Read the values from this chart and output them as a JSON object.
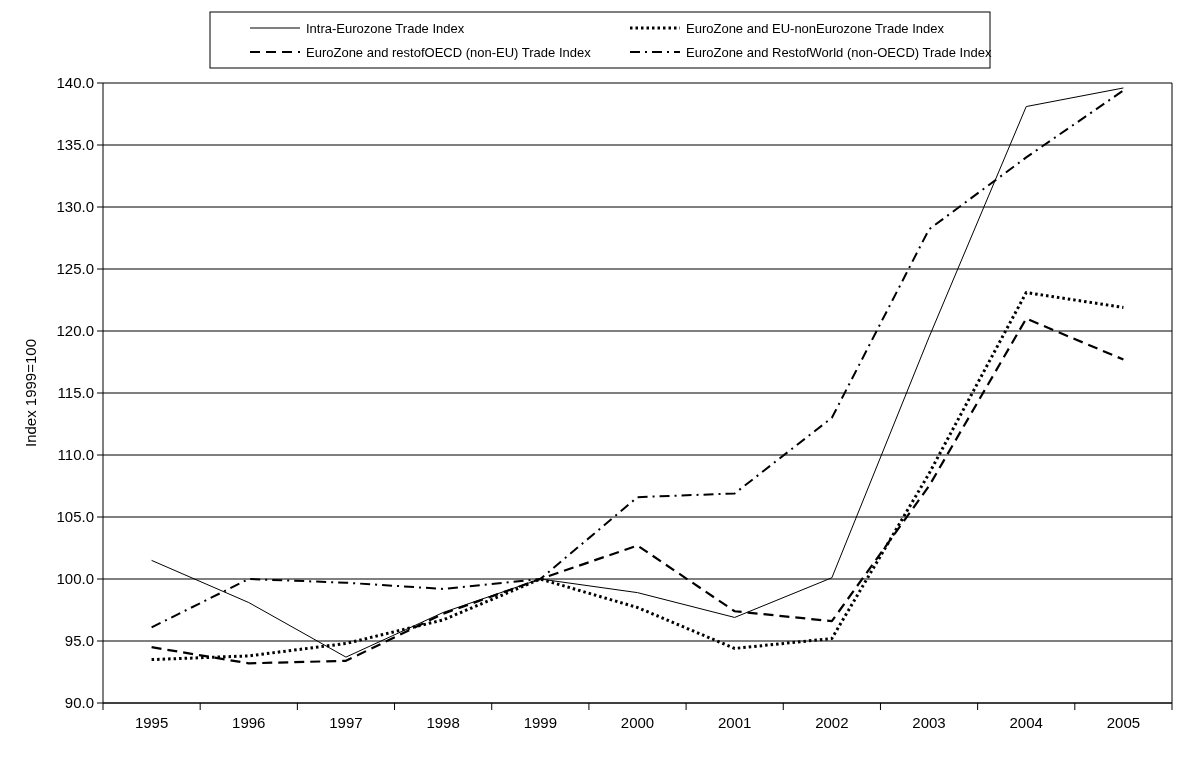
{
  "chart_data": {
    "type": "line",
    "ylabel": "Index  1999=100",
    "categories": [
      "1995",
      "1996",
      "1997",
      "1998",
      "1999",
      "2000",
      "2001",
      "2002",
      "2003",
      "2004",
      "2005"
    ],
    "series": [
      {
        "name": "Intra-Eurozone Trade Index",
        "color": "#000000",
        "line_style": "solid",
        "values": [
          101.5,
          98.1,
          93.7,
          97.3,
          100.0,
          98.9,
          96.9,
          100.1,
          119.5,
          138.1,
          139.6
        ]
      },
      {
        "name": "EuroZone and EU-nonEurozone Trade Index",
        "color": "#000000",
        "line_style": "dotted",
        "values": [
          93.5,
          93.8,
          94.8,
          96.7,
          100.0,
          97.7,
          94.4,
          95.2,
          108.5,
          123.1,
          121.9
        ]
      },
      {
        "name": "EuroZone and restofOECD (non-EU) Trade Index",
        "color": "#000000",
        "line_style": "dashed",
        "values": [
          94.5,
          93.2,
          93.4,
          97.2,
          100.0,
          102.7,
          97.4,
          96.6,
          107.5,
          121.0,
          117.7
        ]
      },
      {
        "name": "EuroZone and RestofWorld (non-OECD) Trade Index",
        "color": "#000000",
        "line_style": "dashdot",
        "values": [
          96.1,
          100.0,
          99.7,
          99.2,
          100.0,
          106.6,
          106.9,
          113.0,
          128.2,
          134.0,
          139.4
        ]
      }
    ],
    "ylim": [
      90,
      140
    ],
    "yticks": [
      {
        "value": 90,
        "label": "90.0"
      },
      {
        "value": 95,
        "label": "95.0"
      },
      {
        "value": 100,
        "label": "100.0"
      },
      {
        "value": 105,
        "label": "105.0"
      },
      {
        "value": 110,
        "label": "110.0"
      },
      {
        "value": 115,
        "label": "115.0"
      },
      {
        "value": 120,
        "label": "120.0"
      },
      {
        "value": 125,
        "label": "125.0"
      },
      {
        "value": 130,
        "label": "130.0"
      },
      {
        "value": 135,
        "label": "135.0"
      },
      {
        "value": 140,
        "label": "140.0"
      }
    ],
    "grid": "y",
    "legend": "top",
    "marker": "none"
  }
}
